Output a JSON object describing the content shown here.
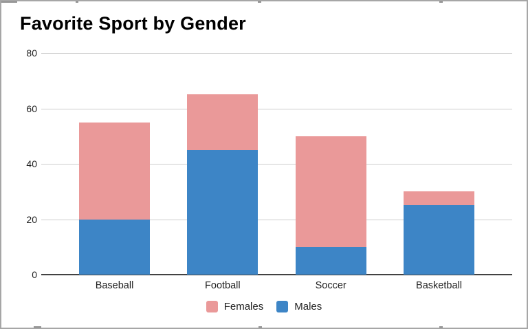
{
  "chart_data": {
    "type": "bar",
    "stacked": true,
    "title": "Favorite Sport by Gender",
    "categories": [
      "Baseball",
      "Football",
      "Soccer",
      "Basketball"
    ],
    "series": [
      {
        "name": "Males",
        "color": "#3d85c6",
        "values": [
          20,
          45,
          10,
          25
        ]
      },
      {
        "name": "Females",
        "color": "#ea9999",
        "values": [
          35,
          20,
          40,
          5
        ]
      }
    ],
    "legend": {
      "position": "bottom",
      "entries": [
        "Females",
        "Males"
      ]
    },
    "xlabel": "",
    "ylabel": "",
    "yticks": [
      0,
      20,
      40,
      60,
      80
    ],
    "ylim": [
      0,
      80
    ],
    "grid": true
  },
  "colors": {
    "females_pink": "#ea9999",
    "males_blue": "#3d85c6",
    "gridline": "#cccccc",
    "axis_line": "#424242",
    "frame_border": "#a6a6a6",
    "text": "#1f1f1f"
  }
}
